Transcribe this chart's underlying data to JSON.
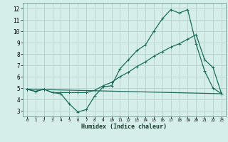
{
  "xlabel": "Humidex (Indice chaleur)",
  "ylabel": "",
  "bg_color": "#d6eeea",
  "grid_color": "#b8d4d0",
  "line_color": "#1a6b5a",
  "xlim": [
    -0.5,
    23.5
  ],
  "ylim": [
    2.5,
    12.5
  ],
  "xticks": [
    0,
    1,
    2,
    3,
    4,
    5,
    6,
    7,
    8,
    9,
    10,
    11,
    12,
    13,
    14,
    15,
    16,
    17,
    18,
    19,
    20,
    21,
    22,
    23
  ],
  "yticks": [
    3,
    4,
    5,
    6,
    7,
    8,
    9,
    10,
    11,
    12
  ],
  "series1_x": [
    0,
    1,
    2,
    3,
    4,
    5,
    6,
    7,
    8,
    9,
    10,
    11,
    12,
    13,
    14,
    15,
    16,
    17,
    18,
    19,
    20,
    21,
    22,
    23
  ],
  "series1_y": [
    4.9,
    4.7,
    4.9,
    4.6,
    4.5,
    3.6,
    2.9,
    3.1,
    4.3,
    5.1,
    5.2,
    6.7,
    7.5,
    8.3,
    8.8,
    10.0,
    11.1,
    11.9,
    11.6,
    11.9,
    8.9,
    6.5,
    5.0,
    4.5
  ],
  "series2_x": [
    0,
    1,
    2,
    3,
    4,
    5,
    6,
    7,
    8,
    9,
    10,
    11,
    12,
    13,
    14,
    15,
    16,
    17,
    18,
    19,
    20,
    21,
    22,
    23
  ],
  "series2_y": [
    4.9,
    4.7,
    4.9,
    4.6,
    4.6,
    4.6,
    4.6,
    4.6,
    4.8,
    5.2,
    5.5,
    6.0,
    6.4,
    6.9,
    7.3,
    7.8,
    8.2,
    8.6,
    8.9,
    9.3,
    9.7,
    7.5,
    6.8,
    4.5
  ],
  "series3_x": [
    0,
    23
  ],
  "series3_y": [
    4.9,
    4.5
  ],
  "marker_size": 3.0,
  "lw": 0.9
}
